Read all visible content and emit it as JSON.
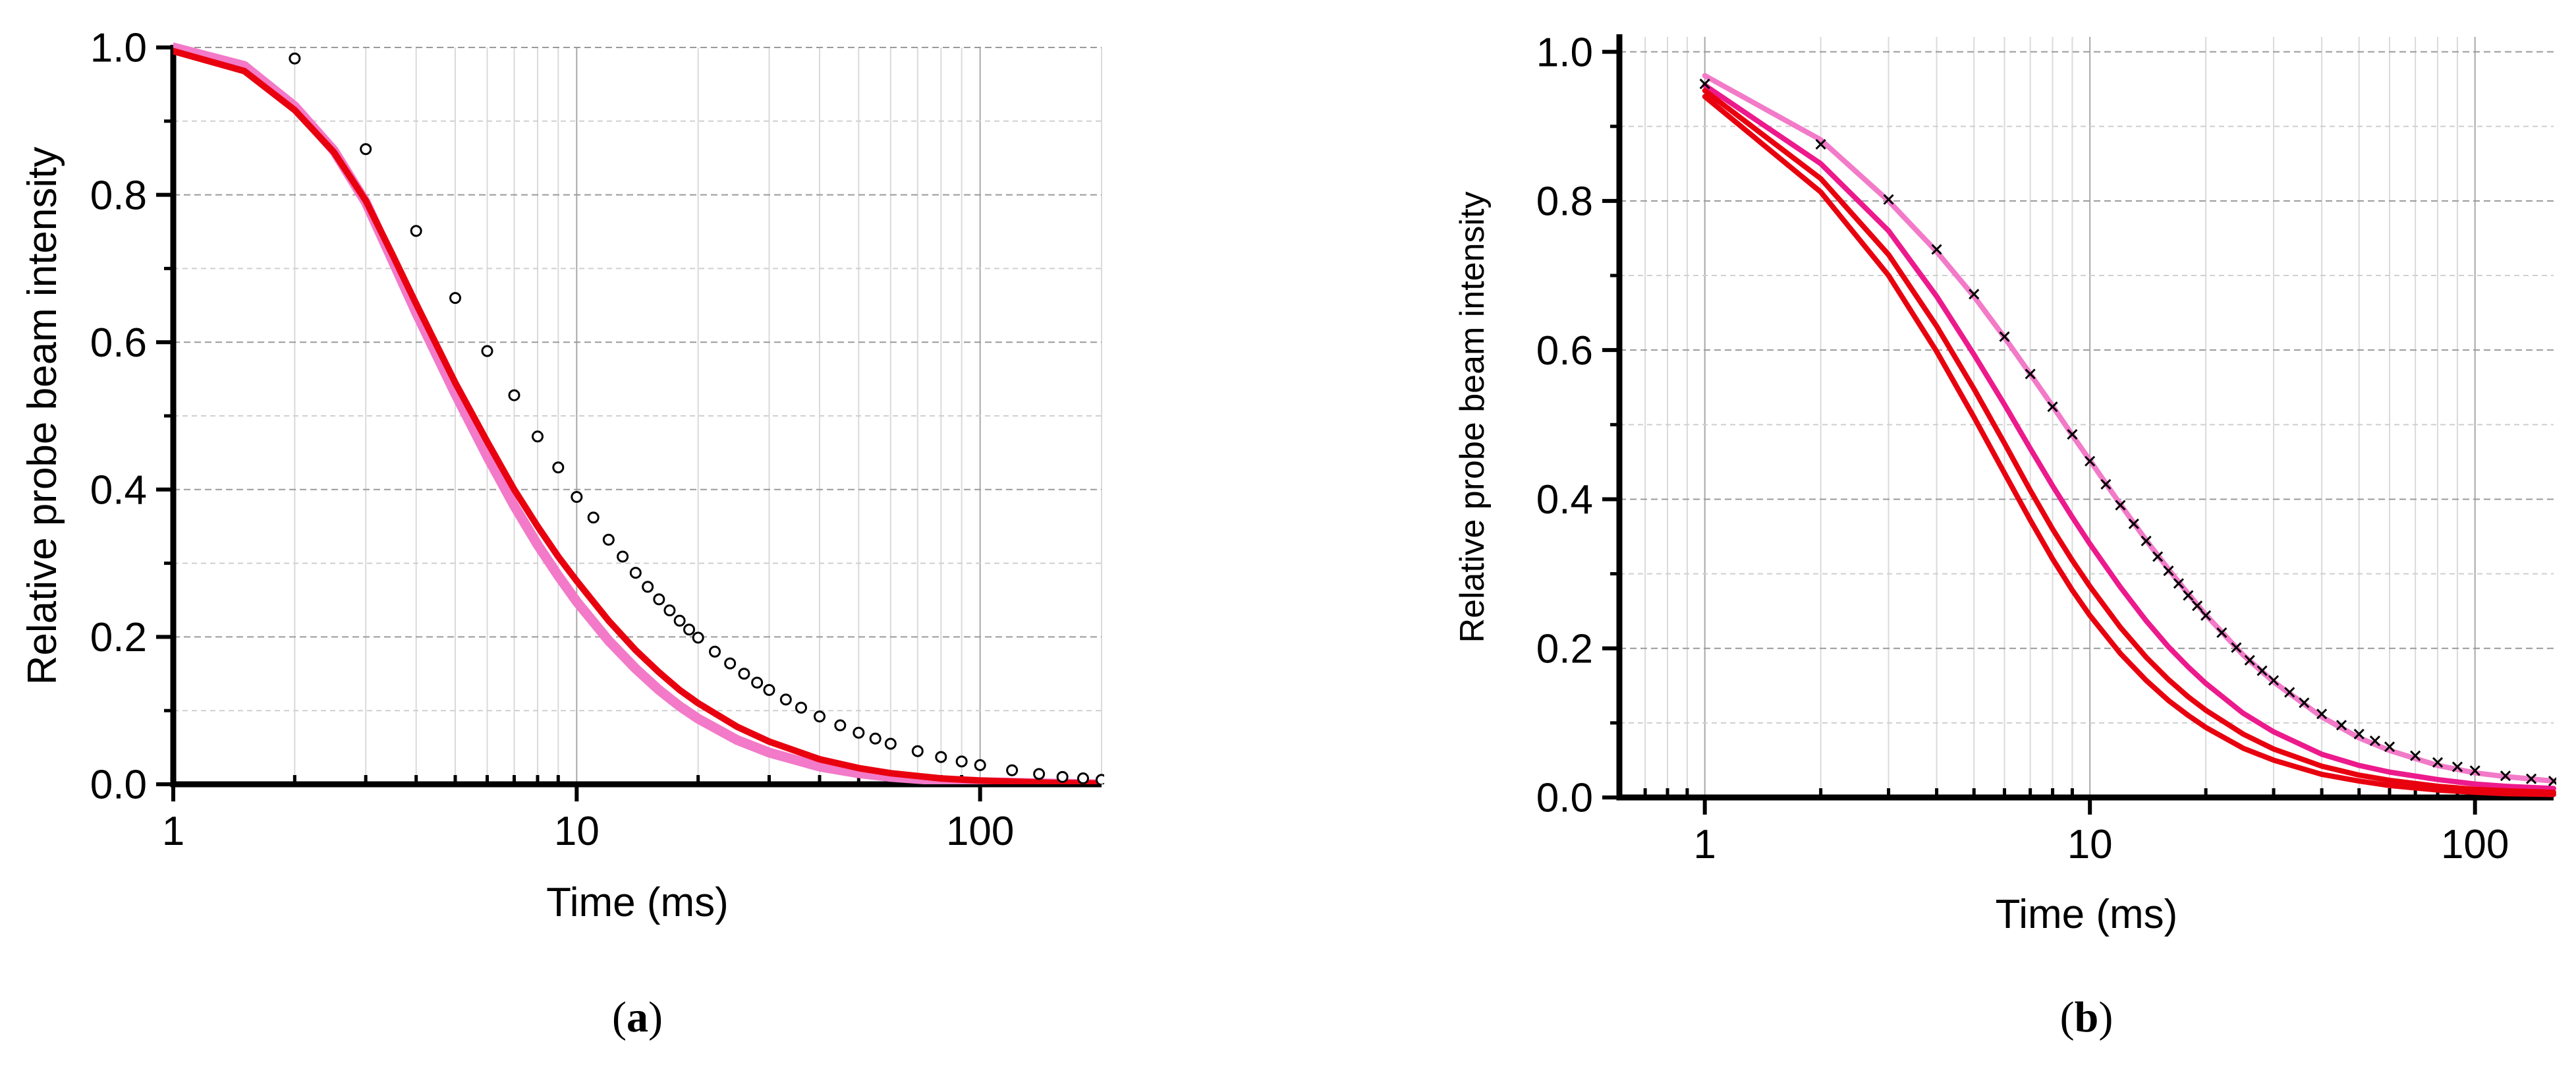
{
  "chart_data": [
    {
      "id": "a",
      "type": "line",
      "caption": "(a)",
      "xlabel": "Time (ms)",
      "ylabel": "Relative probe beam intensity",
      "xscale": "log",
      "xlim": [
        1,
        200
      ],
      "ylim": [
        0,
        1
      ],
      "xticks": [
        1,
        10,
        100
      ],
      "yticks": [
        0.0,
        0.2,
        0.4,
        0.6,
        0.8,
        1.0
      ],
      "grid": true,
      "colors": {
        "measured": "#000000",
        "pink": "#f27ac8",
        "red": "#e8000f"
      },
      "series": [
        {
          "role": "measured",
          "style": "open-circle",
          "x": [
            2,
            3,
            4,
            5,
            6,
            7,
            8,
            9,
            10,
            11,
            12,
            13,
            14,
            15,
            16,
            17,
            18,
            19,
            20,
            22,
            24,
            26,
            28,
            30,
            33,
            36,
            40,
            45,
            50,
            55,
            60,
            70,
            80,
            90,
            100,
            120,
            140,
            160,
            180,
            200
          ],
          "y": [
            0.985,
            0.862,
            0.751,
            0.66,
            0.588,
            0.528,
            0.472,
            0.43,
            0.39,
            0.362,
            0.332,
            0.309,
            0.287,
            0.268,
            0.251,
            0.236,
            0.222,
            0.21,
            0.199,
            0.18,
            0.164,
            0.15,
            0.138,
            0.128,
            0.115,
            0.104,
            0.092,
            0.08,
            0.07,
            0.062,
            0.055,
            0.045,
            0.037,
            0.031,
            0.026,
            0.019,
            0.014,
            0.01,
            0.008,
            0.006
          ]
        },
        {
          "role": "pink",
          "style": "line",
          "x": [
            1,
            1.5,
            2,
            2.5,
            3,
            3.5,
            4,
            5,
            6,
            7,
            8,
            9,
            10,
            12,
            14,
            16,
            18,
            20,
            25,
            30,
            40,
            50,
            60,
            80,
            100,
            150,
            200
          ],
          "y": [
            1.0,
            0.975,
            0.92,
            0.86,
            0.79,
            0.71,
            0.64,
            0.53,
            0.445,
            0.378,
            0.325,
            0.283,
            0.248,
            0.195,
            0.157,
            0.128,
            0.106,
            0.089,
            0.06,
            0.043,
            0.024,
            0.015,
            0.01,
            0.005,
            0.003,
            0.001,
            0.0
          ]
        },
        {
          "role": "red",
          "style": "line",
          "x": [
            1,
            1.5,
            2,
            2.5,
            3,
            3.5,
            4,
            5,
            6,
            7,
            8,
            9,
            10,
            12,
            14,
            16,
            18,
            20,
            25,
            30,
            40,
            50,
            60,
            80,
            100,
            150,
            200
          ],
          "y": [
            0.995,
            0.968,
            0.915,
            0.858,
            0.792,
            0.718,
            0.652,
            0.545,
            0.465,
            0.4,
            0.35,
            0.309,
            0.276,
            0.222,
            0.182,
            0.152,
            0.128,
            0.11,
            0.078,
            0.058,
            0.034,
            0.022,
            0.015,
            0.008,
            0.005,
            0.002,
            0.001
          ]
        }
      ]
    },
    {
      "id": "b",
      "type": "line",
      "caption": "(b)",
      "xlabel": "Time (ms)",
      "ylabel": "Relative probe beam intensity",
      "xscale": "log",
      "xlim": [
        0.6,
        160
      ],
      "ylim": [
        0,
        1.02
      ],
      "xticks": [
        1,
        10,
        100
      ],
      "yticks": [
        0.0,
        0.2,
        0.4,
        0.6,
        0.8,
        1.0
      ],
      "grid": true,
      "colors": {
        "measured": "#000000",
        "pink": "#f27ac8",
        "magenta": "#ec1a8c",
        "red": "#e8000f"
      },
      "series": [
        {
          "role": "measured",
          "style": "cross",
          "x": [
            1,
            2,
            3,
            4,
            5,
            6,
            7,
            8,
            9,
            10,
            11,
            12,
            13,
            14,
            15,
            16,
            17,
            18,
            19,
            20,
            22,
            24,
            26,
            28,
            30,
            33,
            36,
            40,
            45,
            50,
            55,
            60,
            70,
            80,
            90,
            100,
            120,
            140,
            160
          ],
          "y": [
            0.957,
            0.876,
            0.802,
            0.735,
            0.675,
            0.618,
            0.568,
            0.524,
            0.487,
            0.451,
            0.42,
            0.392,
            0.367,
            0.344,
            0.323,
            0.304,
            0.287,
            0.271,
            0.257,
            0.244,
            0.221,
            0.201,
            0.184,
            0.17,
            0.157,
            0.141,
            0.127,
            0.112,
            0.097,
            0.085,
            0.076,
            0.068,
            0.056,
            0.047,
            0.041,
            0.036,
            0.029,
            0.025,
            0.022
          ]
        },
        {
          "role": "pink",
          "style": "line",
          "x": [
            1,
            2,
            3,
            4,
            5,
            6,
            7,
            8,
            9,
            10,
            12,
            14,
            16,
            18,
            20,
            25,
            30,
            40,
            50,
            60,
            80,
            100,
            120,
            160
          ],
          "y": [
            0.968,
            0.882,
            0.8,
            0.732,
            0.672,
            0.617,
            0.568,
            0.525,
            0.486,
            0.452,
            0.393,
            0.345,
            0.306,
            0.273,
            0.245,
            0.191,
            0.155,
            0.108,
            0.08,
            0.063,
            0.043,
            0.033,
            0.028,
            0.022
          ]
        },
        {
          "role": "magenta",
          "style": "line",
          "x": [
            1,
            2,
            3,
            4,
            5,
            6,
            7,
            8,
            9,
            10,
            12,
            14,
            16,
            18,
            20,
            25,
            30,
            40,
            50,
            60,
            80,
            100,
            120,
            160
          ],
          "y": [
            0.955,
            0.85,
            0.76,
            0.672,
            0.594,
            0.527,
            0.468,
            0.418,
            0.376,
            0.34,
            0.282,
            0.237,
            0.202,
            0.175,
            0.153,
            0.113,
            0.088,
            0.058,
            0.043,
            0.034,
            0.024,
            0.018,
            0.015,
            0.012
          ]
        },
        {
          "role": "red",
          "style": "line",
          "x": [
            1,
            2,
            3,
            4,
            5,
            6,
            7,
            8,
            9,
            10,
            12,
            14,
            16,
            18,
            20,
            25,
            30,
            40,
            50,
            60,
            80,
            100,
            120,
            160
          ],
          "y": [
            0.948,
            0.83,
            0.728,
            0.632,
            0.548,
            0.475,
            0.412,
            0.36,
            0.318,
            0.283,
            0.228,
            0.188,
            0.158,
            0.135,
            0.117,
            0.085,
            0.065,
            0.042,
            0.03,
            0.023,
            0.015,
            0.011,
            0.009,
            0.007
          ]
        },
        {
          "role": "red",
          "style": "line",
          "x": [
            1,
            2,
            3,
            4,
            5,
            6,
            7,
            8,
            9,
            10,
            12,
            14,
            16,
            18,
            20,
            25,
            30,
            40,
            50,
            60,
            80,
            100,
            120,
            160
          ],
          "y": [
            0.94,
            0.812,
            0.7,
            0.598,
            0.51,
            0.435,
            0.372,
            0.32,
            0.278,
            0.244,
            0.193,
            0.157,
            0.13,
            0.11,
            0.094,
            0.066,
            0.05,
            0.031,
            0.022,
            0.016,
            0.01,
            0.007,
            0.005,
            0.004
          ]
        }
      ]
    }
  ]
}
